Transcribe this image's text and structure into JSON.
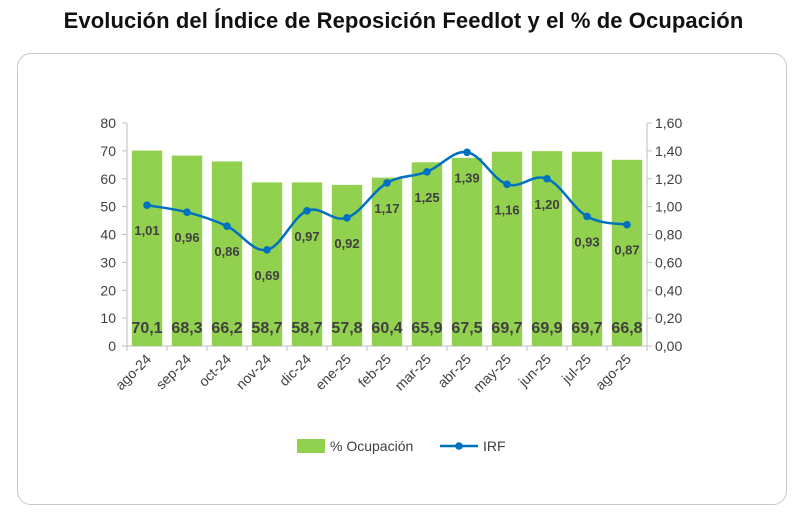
{
  "title": "Evolución del Índice de Reposición Feedlot y el % de Ocupación",
  "chart_data": {
    "type": "bar",
    "categories": [
      "ago-24",
      "sep-24",
      "oct-24",
      "nov-24",
      "dic-24",
      "ene-25",
      "feb-25",
      "mar-25",
      "abr-25",
      "may-25",
      "jun-25",
      "jul-25",
      "ago-25"
    ],
    "series": [
      {
        "name": "% Ocupación",
        "type": "bar",
        "axis": "left",
        "color": "#92d050",
        "values": [
          70.1,
          68.3,
          66.2,
          58.7,
          58.7,
          57.8,
          60.4,
          65.9,
          67.5,
          69.7,
          69.9,
          69.7,
          66.8
        ],
        "labels": [
          "70,1",
          "68,3",
          "66,2",
          "58,7",
          "58,7",
          "57,8",
          "60,4",
          "65,9",
          "67,5",
          "69,7",
          "69,9",
          "69,7",
          "66,8"
        ]
      },
      {
        "name": "IRF",
        "type": "line",
        "axis": "right",
        "color": "#0070c0",
        "values": [
          1.01,
          0.96,
          0.86,
          0.69,
          0.97,
          0.92,
          1.17,
          1.25,
          1.39,
          1.16,
          1.2,
          0.93,
          0.87
        ],
        "labels": [
          "1,01",
          "0,96",
          "0,86",
          "0,69",
          "0,97",
          "0,92",
          "1,17",
          "1,25",
          "1,39",
          "1,16",
          "1,20",
          "0,93",
          "0,87"
        ]
      }
    ],
    "y_left": {
      "min": 0,
      "max": 80,
      "step": 10,
      "ticks": [
        "0",
        "10",
        "20",
        "30",
        "40",
        "50",
        "60",
        "70",
        "80"
      ]
    },
    "y_right": {
      "min": 0,
      "max": 1.6,
      "step": 0.2,
      "ticks": [
        "0,00",
        "0,20",
        "0,40",
        "0,60",
        "0,80",
        "1,00",
        "1,20",
        "1,40",
        "1,60"
      ]
    },
    "grid": false,
    "legend_position": "bottom",
    "legend": [
      {
        "label": "% Ocupación",
        "kind": "bar",
        "color": "#92d050"
      },
      {
        "label": "IRF",
        "kind": "line",
        "color": "#0070c0"
      }
    ]
  }
}
